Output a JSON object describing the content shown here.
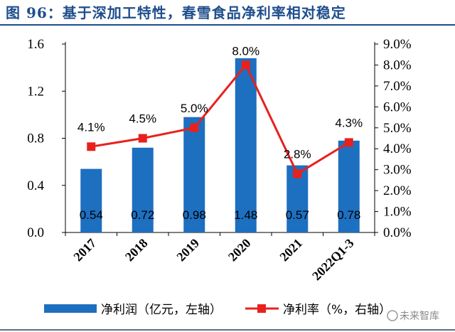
{
  "figure": {
    "title": "图 96：基于深加工特性，春雪食品净利率相对稳定",
    "watermark": "未来智库"
  },
  "colors": {
    "bar": "#1d6fc0",
    "line": "#e8211d",
    "title": "#1f4e8c"
  },
  "chart_data": {
    "type": "bar",
    "categories": [
      "2017",
      "2018",
      "2019",
      "2020",
      "2021",
      "2022Q1-3"
    ],
    "series": [
      {
        "name": "净利润（亿元，左轴）",
        "type": "bar",
        "axis": "left",
        "values": [
          0.54,
          0.72,
          0.98,
          1.48,
          0.57,
          0.78
        ],
        "labels": [
          "0.54",
          "0.72",
          "0.98",
          "1.48",
          "0.57",
          "0.78"
        ]
      },
      {
        "name": "净利率（%，右轴）",
        "type": "line",
        "axis": "right",
        "values": [
          4.1,
          4.5,
          5.0,
          8.0,
          2.8,
          4.3
        ],
        "labels": [
          "4.1%",
          "4.5%",
          "5.0%",
          "8.0%",
          "2.8%",
          "4.3%"
        ]
      }
    ],
    "y_left": {
      "ylim": [
        0,
        1.6
      ],
      "ticks": [
        0,
        0.4,
        0.8,
        1.2,
        1.6
      ],
      "tick_labels": [
        "0.0",
        "0.4",
        "0.8",
        "1.2",
        "1.6"
      ]
    },
    "y_right": {
      "ylim": [
        0,
        9
      ],
      "ticks": [
        0,
        1,
        2,
        3,
        4,
        5,
        6,
        7,
        8,
        9
      ],
      "tick_labels": [
        "0.0%",
        "1.0%",
        "2.0%",
        "3.0%",
        "4.0%",
        "5.0%",
        "6.0%",
        "7.0%",
        "8.0%",
        "9.0%"
      ]
    },
    "grid": false,
    "legend_position": "bottom"
  }
}
